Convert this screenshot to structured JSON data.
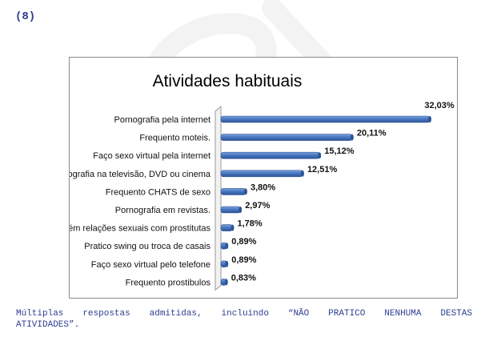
{
  "page": {
    "number_label": "(8)",
    "note_line1": "Múltiplas respostas admitidas, incluindo “NÃO PRATICO NENHUMA DESTAS",
    "note_line2": "ATIVIDADES”."
  },
  "colors": {
    "bar": "#4a78c2",
    "bar_dark": "#2e5597",
    "text_blue": "#2d3d8f"
  },
  "chart_data": {
    "type": "bar",
    "orientation": "horizontal",
    "title": "Atividades habituais",
    "categories": [
      "Pornografia pela internet",
      "Frequento moteis.",
      "Faço sexo virtual pela internet",
      "Pornografia na televisão, DVD ou cinema",
      "Frequento CHATS de sexo",
      "Pornografia em revistas.",
      "Mantém relações sexuais com prostitutas",
      "Pratico swing ou troca de casais",
      "Faço sexo virtual pelo telefone",
      "Frequento prostibulos"
    ],
    "values": [
      32.03,
      20.11,
      15.12,
      12.51,
      3.8,
      2.97,
      1.78,
      0.89,
      0.89,
      0.83
    ],
    "value_labels": [
      "32,03%",
      "20,11%",
      "15,12%",
      "12,51%",
      "3,80%",
      "2,97%",
      "1,78%",
      "0,89%",
      "0,89%",
      "0,83%"
    ],
    "xlim": [
      0,
      34
    ],
    "grid": false,
    "legend": "none"
  }
}
